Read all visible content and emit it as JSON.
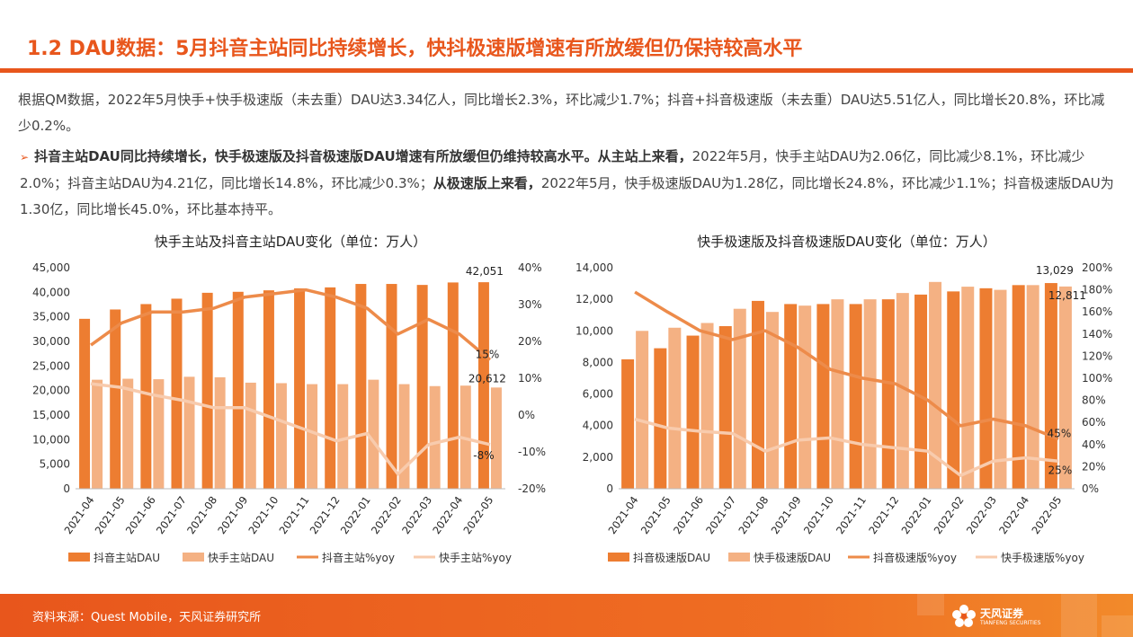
{
  "header": {
    "title": "1.2 DAU数据：5月抖音主站同比持续增长，快抖极速版增速有所放缓但仍保持较高水平"
  },
  "para1": "根据QM数据，2022年5月快手+快手极速版（未去重）DAU达3.34亿人，同比增长2.3%，环比减少1.7%；抖音+抖音极速版（未去重）DAU达5.51亿人，同比增长20.8%，环比减少0.2%。",
  "para2": {
    "bold1": "抖音主站DAU同比持续增长，快手极速版及抖音极速版DAU增速有所放缓但仍维持较高水平。从主站上来看，",
    "text1": "2022年5月，快手主站DAU为2.06亿，同比减少8.1%，环比减少2.0%；抖音主站DAU为4.21亿，同比增长14.8%，环比减少0.3%；",
    "bold2": "从极速版上来看，",
    "text2": "2022年5月，快手极速版DAU为1.28亿，同比增长24.8%，环比减少1.1%；抖音极速版DAU为1.30亿，同比增长45.0%，环比基本持平。"
  },
  "colors": {
    "accent": "#e8561c",
    "bar_dark": "#ed7d31",
    "bar_light": "#f4b183",
    "line_dark": "#ed8b4a",
    "line_light": "#f8cbad"
  },
  "chart_data": [
    {
      "type": "bar",
      "title": "快手主站及抖音主站DAU变化（单位：万人）",
      "categories": [
        "2021-04",
        "2021-05",
        "2021-06",
        "2021-07",
        "2021-08",
        "2021-09",
        "2021-10",
        "2021-11",
        "2021-12",
        "2022-01",
        "2022-02",
        "2022-03",
        "2022-04",
        "2022-05"
      ],
      "ylim": [
        0,
        45000
      ],
      "y2lim": [
        -0.2,
        0.4
      ],
      "yticks": [
        "0",
        "5,000",
        "10,000",
        "15,000",
        "20,000",
        "25,000",
        "30,000",
        "35,000",
        "40,000",
        "45,000"
      ],
      "y2ticks": [
        "-20%",
        "-10%",
        "0%",
        "10%",
        "20%",
        "30%",
        "40%"
      ],
      "series": [
        {
          "name": "抖音主站DAU",
          "kind": "bar",
          "values": [
            34600,
            36500,
            37600,
            38700,
            39900,
            40100,
            40400,
            40800,
            41000,
            41700,
            41700,
            41500,
            42000,
            42051
          ]
        },
        {
          "name": "快手主站DAU",
          "kind": "bar",
          "values": [
            22200,
            22400,
            22300,
            22800,
            22700,
            21600,
            21500,
            21300,
            21300,
            22200,
            21300,
            20900,
            21000,
            20612
          ]
        },
        {
          "name": "抖音主站%yoy",
          "kind": "line",
          "axis": "right",
          "values": [
            0.19,
            0.25,
            0.28,
            0.28,
            0.29,
            0.32,
            0.33,
            0.34,
            0.32,
            0.29,
            0.22,
            0.26,
            0.22,
            0.15
          ]
        },
        {
          "name": "快手主站%yoy",
          "kind": "line",
          "axis": "right",
          "values": [
            0.085,
            0.075,
            0.055,
            0.04,
            0.02,
            0.02,
            -0.01,
            -0.04,
            -0.07,
            -0.05,
            -0.16,
            -0.08,
            -0.06,
            -0.08
          ]
        }
      ],
      "annotations": {
        "bar1_last": "42,051",
        "bar2_last": "20,612",
        "line1_last": "15%",
        "line2_last": "-8%"
      }
    },
    {
      "type": "bar",
      "title": "快手极速版及抖音极速版DAU变化（单位：万人）",
      "categories": [
        "2021-04",
        "2021-05",
        "2021-06",
        "2021-07",
        "2021-08",
        "2021-09",
        "2021-10",
        "2021-11",
        "2021-12",
        "2022-01",
        "2022-02",
        "2022-03",
        "2022-04",
        "2022-05"
      ],
      "ylim": [
        0,
        14000
      ],
      "y2lim": [
        0,
        2.0
      ],
      "yticks": [
        "0",
        "2,000",
        "4,000",
        "6,000",
        "8,000",
        "10,000",
        "12,000",
        "14,000"
      ],
      "y2ticks": [
        "0%",
        "20%",
        "40%",
        "60%",
        "80%",
        "100%",
        "120%",
        "140%",
        "160%",
        "180%",
        "200%"
      ],
      "series": [
        {
          "name": "抖音极速版DAU",
          "kind": "bar",
          "values": [
            8200,
            8900,
            9700,
            10300,
            11900,
            11700,
            11700,
            11700,
            12000,
            12300,
            12500,
            12700,
            12900,
            13029
          ]
        },
        {
          "name": "快手极速版DAU",
          "kind": "bar",
          "values": [
            10000,
            10200,
            10500,
            11400,
            11200,
            11600,
            12000,
            12000,
            12400,
            13100,
            12800,
            12600,
            12900,
            12811
          ]
        },
        {
          "name": "抖音极速版%yoy",
          "kind": "line",
          "axis": "right",
          "values": [
            1.78,
            1.6,
            1.43,
            1.35,
            1.43,
            1.28,
            1.08,
            1.0,
            0.95,
            0.8,
            0.57,
            0.63,
            0.57,
            0.45
          ]
        },
        {
          "name": "快手极速版%yoy",
          "kind": "line",
          "axis": "right",
          "values": [
            0.63,
            0.55,
            0.52,
            0.5,
            0.34,
            0.44,
            0.46,
            0.4,
            0.37,
            0.34,
            0.12,
            0.25,
            0.28,
            0.25
          ]
        }
      ],
      "annotations": {
        "bar1_last": "13,029",
        "bar2_last": "12,811",
        "line1_last": "45%",
        "line2_last": "25%"
      }
    }
  ],
  "footer": {
    "source": "资料来源：Quest Mobile，天风证券研究所",
    "logo": "天风证券",
    "logo_sub": "TIANFENG SECURITIES"
  }
}
